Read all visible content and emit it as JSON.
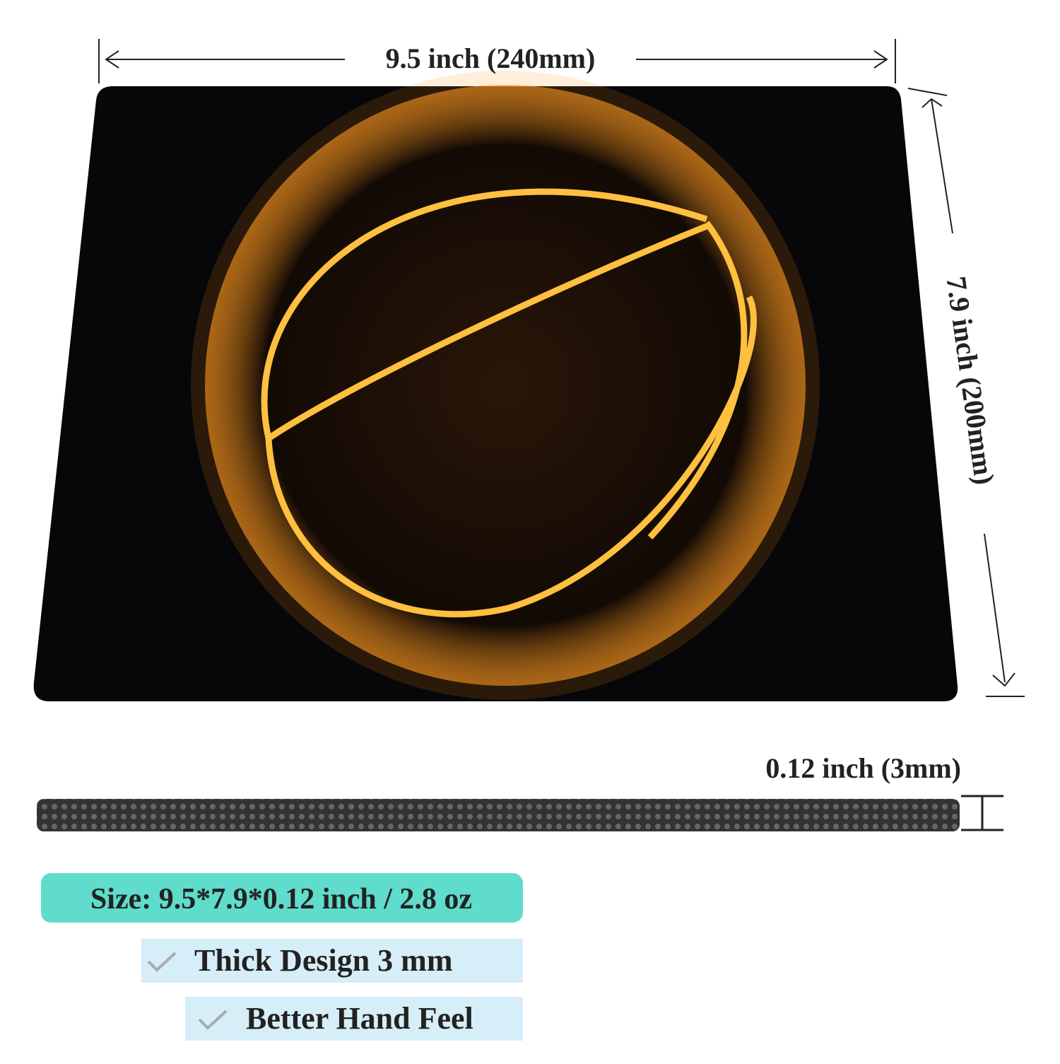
{
  "dimensions": {
    "width": "9.5 inch (240mm)",
    "height": "7.9 inch (200mm)",
    "thickness": "0.12 inch (3mm)"
  },
  "features": {
    "size": "Size: 9.5*7.9*0.12 inch / 2.8 oz",
    "items": [
      "Thick  Design  3 mm",
      "Better Hand Feel"
    ]
  }
}
